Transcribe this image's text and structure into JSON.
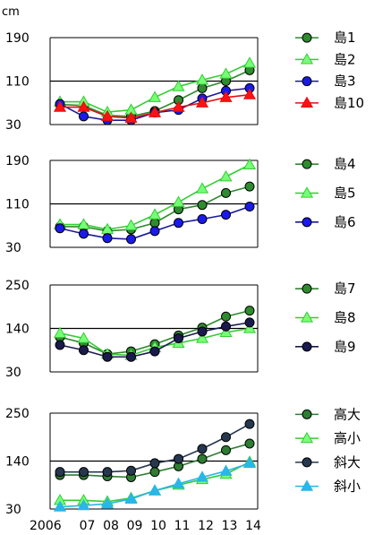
{
  "figure": {
    "unit_label": "cm"
  },
  "chart_data": [
    {
      "type": "line",
      "title": "",
      "xlabel": "",
      "ylabel": "cm",
      "x": [
        2006,
        2007,
        2008,
        2009,
        2010,
        2011,
        2012,
        2013,
        2014
      ],
      "ylim": [
        30,
        190
      ],
      "yticks": [
        "190",
        "110",
        "30"
      ],
      "reference_line": 110,
      "legend_position": "right",
      "series": [
        {
          "name": "島1",
          "color": "#2e8b2e",
          "marker": "circle",
          "marker_fill": "#2e8b2e",
          "values": [
            67,
            65,
            47,
            45,
            55,
            75,
            97,
            110,
            130
          ]
        },
        {
          "name": "島2",
          "color": "#33cc33",
          "marker": "triangle",
          "marker_fill": "#77ff77",
          "values": [
            72,
            72,
            53,
            57,
            80,
            100,
            112,
            123,
            143
          ]
        },
        {
          "name": "島3",
          "color": "#1a1a99",
          "marker": "circle",
          "marker_fill": "#1a1aee",
          "values": [
            68,
            45,
            38,
            38,
            52,
            57,
            78,
            92,
            97
          ]
        },
        {
          "name": "島10",
          "color": "#dd1111",
          "marker": "triangle",
          "marker_fill": "#ff1111",
          "values": [
            62,
            62,
            45,
            42,
            52,
            62,
            70,
            80,
            85
          ]
        }
      ]
    },
    {
      "type": "line",
      "title": "",
      "xlabel": "",
      "ylabel": "",
      "x": [
        2006,
        2007,
        2008,
        2009,
        2010,
        2011,
        2012,
        2013,
        2014
      ],
      "ylim": [
        30,
        190
      ],
      "yticks": [
        "190",
        "110",
        "30"
      ],
      "reference_line": 110,
      "legend_position": "right",
      "series": [
        {
          "name": "島4",
          "color": "#2e8b2e",
          "marker": "circle",
          "marker_fill": "#2e8b2e",
          "values": [
            68,
            68,
            60,
            63,
            75,
            100,
            108,
            130,
            142
          ]
        },
        {
          "name": "島5",
          "color": "#33cc33",
          "marker": "triangle",
          "marker_fill": "#77ff77",
          "values": [
            72,
            72,
            63,
            70,
            90,
            113,
            138,
            160,
            182
          ]
        },
        {
          "name": "島6",
          "color": "#1a1a99",
          "marker": "circle",
          "marker_fill": "#1a1aee",
          "values": [
            65,
            55,
            47,
            45,
            60,
            75,
            82,
            90,
            105
          ]
        }
      ]
    },
    {
      "type": "line",
      "title": "",
      "xlabel": "",
      "ylabel": "",
      "x": [
        2006,
        2007,
        2008,
        2009,
        2010,
        2011,
        2012,
        2013,
        2014
      ],
      "ylim": [
        30,
        250
      ],
      "yticks": [
        "250",
        "140",
        "30"
      ],
      "reference_line": 140,
      "legend_position": "right",
      "series": [
        {
          "name": "島7",
          "color": "#2e8b2e",
          "marker": "circle",
          "marker_fill": "#2e8b2e",
          "values": [
            118,
            103,
            75,
            82,
            100,
            122,
            142,
            170,
            185
          ]
        },
        {
          "name": "島8",
          "color": "#33cc33",
          "marker": "triangle",
          "marker_fill": "#77ff77",
          "values": [
            128,
            115,
            75,
            72,
            92,
            103,
            115,
            130,
            140
          ]
        },
        {
          "name": "島9",
          "color": "#1a1a4f",
          "marker": "circle",
          "marker_fill": "#1a1a4f",
          "values": [
            98,
            85,
            68,
            68,
            82,
            115,
            132,
            145,
            155
          ]
        }
      ]
    },
    {
      "type": "line",
      "title": "",
      "xlabel": "",
      "ylabel": "",
      "x": [
        2006,
        2007,
        2008,
        2009,
        2010,
        2011,
        2012,
        2013,
        2014
      ],
      "x_tick_labels": [
        "2006",
        "07",
        "08",
        "09",
        "10",
        "11",
        "12",
        "13",
        "14"
      ],
      "ylim": [
        30,
        250
      ],
      "yticks": [
        "250",
        "140",
        "30"
      ],
      "reference_line": 140,
      "legend_position": "right",
      "series": [
        {
          "name": "高大",
          "color": "#2e7d32",
          "marker": "circle",
          "marker_fill": "#2e7d32",
          "values": [
            108,
            108,
            105,
            103,
            115,
            128,
            145,
            165,
            180
          ]
        },
        {
          "name": "高小",
          "color": "#33cc33",
          "marker": "triangle",
          "marker_fill": "#77ff77",
          "values": [
            50,
            50,
            47,
            55,
            72,
            85,
            98,
            110,
            138
          ]
        },
        {
          "name": "斜大",
          "color": "#263850",
          "marker": "circle",
          "marker_fill": "#263850",
          "values": [
            115,
            115,
            115,
            118,
            135,
            145,
            168,
            195,
            225
          ]
        },
        {
          "name": "斜小",
          "color": "#29b6e8",
          "marker": "triangle",
          "marker_fill": "#29b6e8",
          "values": [
            35,
            38,
            42,
            53,
            72,
            88,
            103,
            117,
            135
          ]
        }
      ]
    }
  ]
}
